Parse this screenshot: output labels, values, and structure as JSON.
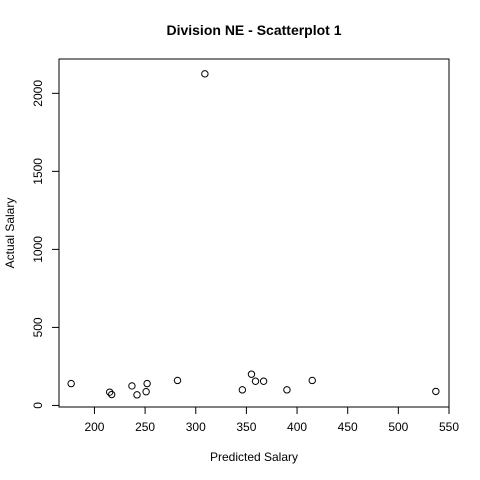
{
  "chart_data": {
    "type": "scatter",
    "title": "Division NE - Scatterplot 1",
    "xlabel": "Predicted Salary",
    "ylabel": "Actual Salary",
    "xlim": [
      165,
      550
    ],
    "ylim": [
      -10,
      2220
    ],
    "x_ticks": [
      200,
      250,
      300,
      350,
      400,
      450,
      500,
      550
    ],
    "y_ticks": [
      0,
      500,
      1000,
      1500,
      2000
    ],
    "grid": false,
    "legend": "none",
    "marker": "open-circle",
    "points": [
      {
        "x": 177,
        "y": 140
      },
      {
        "x": 215,
        "y": 85
      },
      {
        "x": 217,
        "y": 70
      },
      {
        "x": 237,
        "y": 125
      },
      {
        "x": 242,
        "y": 68
      },
      {
        "x": 251,
        "y": 88
      },
      {
        "x": 252,
        "y": 140
      },
      {
        "x": 282,
        "y": 160
      },
      {
        "x": 309,
        "y": 2125
      },
      {
        "x": 346,
        "y": 100
      },
      {
        "x": 355,
        "y": 200
      },
      {
        "x": 359,
        "y": 155
      },
      {
        "x": 367,
        "y": 155
      },
      {
        "x": 390,
        "y": 100
      },
      {
        "x": 415,
        "y": 160
      },
      {
        "x": 537,
        "y": 90
      }
    ]
  }
}
